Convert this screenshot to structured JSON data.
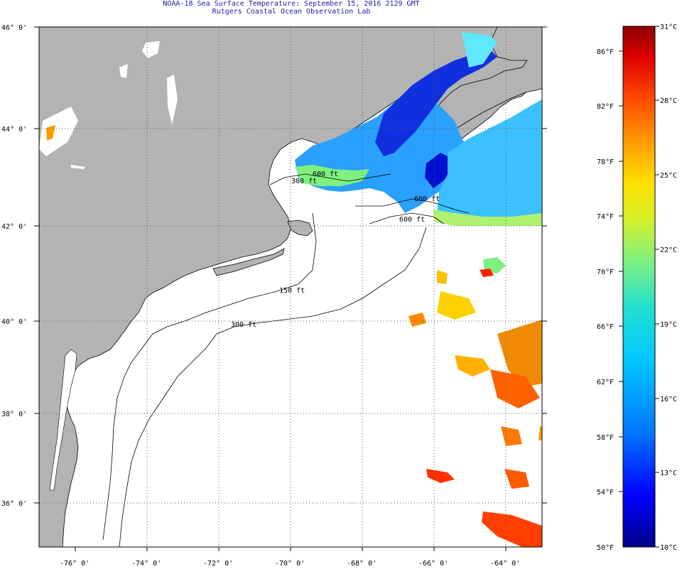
{
  "title": {
    "line1": "NOAA-18 Sea Surface Temperature:  September 15, 2016 2129 GMT",
    "line2": "Rutgers Coastal Ocean Observation Lab"
  },
  "axes": {
    "lat_labels": [
      "46° 0'",
      "44° 0'",
      "42° 0'",
      "40° 0'",
      "38° 0'",
      "36° 0'"
    ],
    "lon_labels": [
      "-76° 0'",
      "-74° 0'",
      "-72° 0'",
      "-70° 0'",
      "-68° 0'",
      "-66° 0'",
      "-64° 0'"
    ]
  },
  "contours": {
    "labels": [
      "150 ft",
      "300 ft",
      "600 ft",
      "300 ft",
      "600 ft",
      "600 ft"
    ]
  },
  "colorbar": {
    "fahrenheit": [
      "86°F",
      "82°F",
      "78°F",
      "74°F",
      "70°F",
      "66°F",
      "62°F",
      "58°F",
      "54°F",
      "50°F"
    ],
    "celsius": [
      "31°C",
      "28°C",
      "25°C",
      "22°C",
      "19°C",
      "16°C",
      "13°C",
      "10°C"
    ],
    "colors": [
      "#00008b",
      "#0000ff",
      "#0077ff",
      "#00c8ff",
      "#22e0d0",
      "#7ff07f",
      "#d8f028",
      "#ffe000",
      "#ff9a00",
      "#ff4a00",
      "#e00000",
      "#8b0000"
    ]
  },
  "colors": {
    "land": "#b3b3b3",
    "ocean_background": "#ffffff",
    "title_text": "#1a1aa6"
  }
}
